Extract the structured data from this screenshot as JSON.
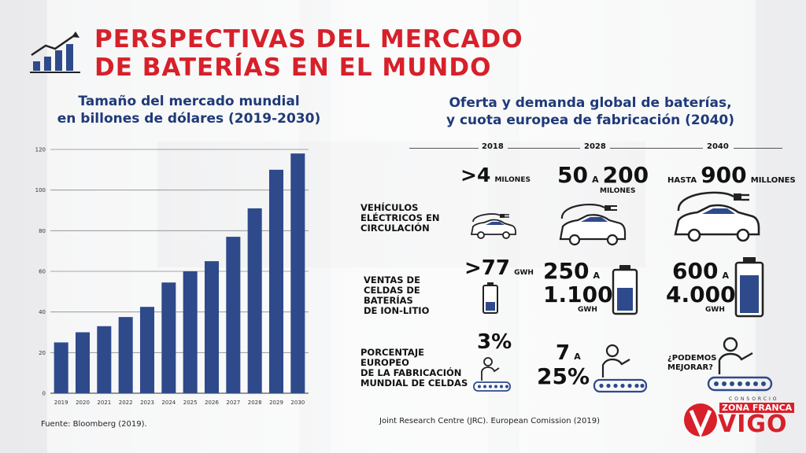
{
  "header": {
    "title_line1": "PERSPECTIVAS DEL MERCADO",
    "title_line2": "DE BATERÍAS EN EL MUNDO"
  },
  "left_panel": {
    "subtitle_line1": "Tamaño del mercado mundial",
    "subtitle_line2": "en billones de dólares (2019-2030)",
    "source": "Fuente: Bloomberg (2019)."
  },
  "chart_data": {
    "type": "bar",
    "title": "Tamaño del mercado mundial en billones de dólares (2019-2030)",
    "categories": [
      "2019",
      "2020",
      "2021",
      "2022",
      "2023",
      "2024",
      "2025",
      "2026",
      "2027",
      "2028",
      "2029",
      "2030"
    ],
    "values": [
      25,
      30,
      33,
      37.5,
      42.5,
      54.5,
      60,
      65,
      77,
      91,
      110,
      118
    ],
    "ylim": [
      0,
      120
    ],
    "yticks": [
      0,
      20,
      40,
      60,
      80,
      100,
      120
    ],
    "grid": true,
    "colors": {
      "bar": "#2e4a8b"
    }
  },
  "right_panel": {
    "subtitle_line1": "Oferta y demanda global de baterías,",
    "subtitle_line2": "y cuota europea de fabricación (2040)",
    "years": [
      "2018",
      "2028",
      "2040"
    ],
    "rows": {
      "vehicles": {
        "label_lines": [
          "VEHÍCULOS",
          "ELÉCTRICOS EN",
          "CIRCULACIÓN"
        ],
        "y2018_big": ">4",
        "y2018_unit": "MILONES",
        "y2028_a": "50",
        "y2028_sep": "A",
        "y2028_b": "200",
        "y2028_unit": "MILONES",
        "y2040_pre": "HASTA",
        "y2040_big": "900",
        "y2040_unit": "MILLONES"
      },
      "cells": {
        "label_lines": [
          "VENTAS DE",
          "CELDAS DE",
          "BATERÍAS",
          "DE ION-LITIO"
        ],
        "y2018_big": ">77",
        "y2018_unit": "GWH",
        "y2028_a": "250",
        "y2028_sep": "A",
        "y2028_b": "1.100",
        "y2028_unit": "GWH",
        "y2040_a": "600",
        "y2040_sep": "A",
        "y2040_b": "4.000",
        "y2040_unit": "GWH"
      },
      "share": {
        "label_lines": [
          "PORCENTAJE",
          "EUROPEO",
          "DE LA FABRICACIÓN",
          "MUNDIAL DE CELDAS"
        ],
        "y2018_big": "3%",
        "y2028_a": "7",
        "y2028_sep": "A",
        "y2028_b": "25%",
        "y2040_line1": "¿PODEMOS",
        "y2040_line2": "MEJORAR?"
      }
    },
    "source": "Joint Research Centre (JRC). European Comission (2019)"
  },
  "logo": {
    "top": "CONSORCIO",
    "mid": "ZONA FRANCA",
    "bottom": "VIGO"
  },
  "colors": {
    "accent": "#d7202a",
    "navy": "#1f3a78",
    "bar": "#2e4a8b"
  }
}
